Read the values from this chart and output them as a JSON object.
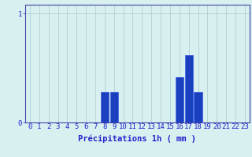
{
  "hours": [
    0,
    1,
    2,
    3,
    4,
    5,
    6,
    7,
    8,
    9,
    10,
    11,
    12,
    13,
    14,
    15,
    16,
    17,
    18,
    19,
    20,
    21,
    22,
    23
  ],
  "values": [
    0,
    0,
    0,
    0,
    0,
    0,
    0,
    0,
    0.28,
    0.28,
    0,
    0,
    0,
    0,
    0,
    0,
    0.42,
    0.62,
    0.28,
    0,
    0,
    0,
    0,
    0
  ],
  "bar_color": "#1a3fbf",
  "bar_edge_color": "#3355ee",
  "background_color": "#d8f0f0",
  "grid_color": "#aacccc",
  "axis_color": "#4444aa",
  "tick_label_color": "#2222cc",
  "xlabel": "Précipitations 1h ( mm )",
  "xlabel_color": "#2222cc",
  "xlim": [
    -0.5,
    23.5
  ],
  "ylim": [
    0,
    1.08
  ],
  "yticks": [
    0,
    1
  ],
  "xlabel_fontsize": 7.5,
  "tick_fontsize": 6.5
}
